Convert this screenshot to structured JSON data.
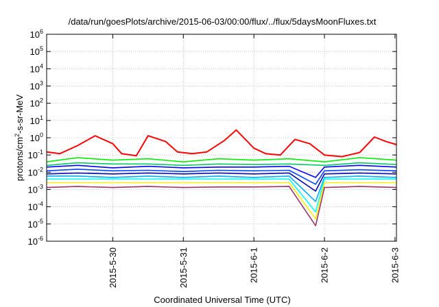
{
  "chart_data": {
    "type": "line",
    "title": "/data/run/goesPlots/archive/2015-06-03/00:00/flux/../flux/5daysMoonFluxes.txt",
    "xlabel": "Coordinated Universal Time (UTC)",
    "ylabel_parts": [
      "protons/cm",
      "2",
      "-s-sr-MeV"
    ],
    "y_scale": "log",
    "ylim": [
      1e-06,
      1000000.0
    ],
    "xlim": [
      "2015-05-29 01:30",
      "2015-06-03 00:30"
    ],
    "y_ticks": [
      {
        "base": "10",
        "exp": "6",
        "value": 1000000.0
      },
      {
        "base": "10",
        "exp": "5",
        "value": 100000.0
      },
      {
        "base": "10",
        "exp": "4",
        "value": 10000.0
      },
      {
        "base": "10",
        "exp": "3",
        "value": 1000.0
      },
      {
        "base": "10",
        "exp": "2",
        "value": 100.0
      },
      {
        "base": "10",
        "exp": "1",
        "value": 10.0
      },
      {
        "base": "10",
        "exp": "0",
        "value": 1
      },
      {
        "base": "10",
        "exp": "-1",
        "value": 0.1
      },
      {
        "base": "10",
        "exp": "-2",
        "value": 0.01
      },
      {
        "base": "10",
        "exp": "-3",
        "value": 0.001
      },
      {
        "base": "10",
        "exp": "-4",
        "value": 0.0001
      },
      {
        "base": "10",
        "exp": "-5",
        "value": 1e-05
      },
      {
        "base": "10",
        "exp": "-6",
        "value": 1e-06
      }
    ],
    "x_ticks": [
      {
        "label": "2015-5-30",
        "value": "2015-05-30 00:00"
      },
      {
        "label": "2015-5-31",
        "value": "2015-05-31 00:00"
      },
      {
        "label": "2015-6-1",
        "value": "2015-06-01 00:00"
      },
      {
        "label": "2015-6-2",
        "value": "2015-06-02 00:00"
      },
      {
        "label": "2015-6-3",
        "value": "2015-06-03 00:00"
      }
    ],
    "grid": true,
    "series": [
      {
        "color": "#ff0000",
        "x": [
          "2015-05-29 01:30",
          "2015-05-29 06:00",
          "2015-05-29 12:00",
          "2015-05-29 18:00",
          "2015-05-30 00:00",
          "2015-05-30 03:00",
          "2015-05-30 08:00",
          "2015-05-30 12:00",
          "2015-05-30 18:00",
          "2015-05-30 22:00",
          "2015-05-31 03:00",
          "2015-05-31 08:00",
          "2015-05-31 14:00",
          "2015-05-31 18:00",
          "2015-06-01 00:00",
          "2015-06-01 04:00",
          "2015-06-01 09:00",
          "2015-06-01 14:00",
          "2015-06-01 19:00",
          "2015-06-02 00:00",
          "2015-06-02 06:00",
          "2015-06-02 12:00",
          "2015-06-02 17:00",
          "2015-06-02 21:00",
          "2015-06-03 00:30"
        ],
        "values": [
          0.15,
          0.12,
          0.35,
          1.3,
          0.45,
          0.12,
          0.09,
          1.3,
          0.6,
          0.15,
          0.12,
          0.15,
          0.7,
          2.8,
          0.25,
          0.12,
          0.1,
          0.8,
          0.45,
          0.1,
          0.08,
          0.14,
          1.1,
          0.6,
          0.4
        ]
      },
      {
        "color": "#00ee00",
        "x": [
          "2015-05-29 01:30",
          "2015-05-29 12:00",
          "2015-05-30 00:00",
          "2015-05-30 12:00",
          "2015-05-31 00:00",
          "2015-05-31 12:00",
          "2015-06-01 00:00",
          "2015-06-01 12:00",
          "2015-06-02 00:00",
          "2015-06-02 12:00",
          "2015-06-03 00:30"
        ],
        "values": [
          0.04,
          0.07,
          0.05,
          0.06,
          0.04,
          0.06,
          0.05,
          0.06,
          0.04,
          0.07,
          0.05
        ]
      },
      {
        "color": "#00cc66",
        "x": [
          "2015-05-29 01:30",
          "2015-05-29 12:00",
          "2015-05-30 00:00",
          "2015-05-30 12:00",
          "2015-05-31 00:00",
          "2015-05-31 12:00",
          "2015-06-01 00:00",
          "2015-06-01 12:00",
          "2015-06-02 00:00",
          "2015-06-02 12:00",
          "2015-06-03 00:30"
        ],
        "values": [
          0.025,
          0.035,
          0.03,
          0.03,
          0.025,
          0.03,
          0.028,
          0.03,
          0.025,
          0.035,
          0.028
        ]
      },
      {
        "color": "#0000ff",
        "x": [
          "2015-05-29 01:30",
          "2015-05-29 12:00",
          "2015-05-30 00:00",
          "2015-05-30 12:00",
          "2015-05-31 00:00",
          "2015-05-31 12:00",
          "2015-06-01 00:00",
          "2015-06-01 12:00",
          "2015-06-01 21:00",
          "2015-06-02 00:00",
          "2015-06-02 12:00",
          "2015-06-03 00:30"
        ],
        "values": [
          0.02,
          0.025,
          0.018,
          0.022,
          0.018,
          0.02,
          0.02,
          0.022,
          0.005,
          0.02,
          0.025,
          0.02
        ]
      },
      {
        "color": "#0044ff",
        "x": [
          "2015-05-29 01:30",
          "2015-05-29 12:00",
          "2015-05-30 00:00",
          "2015-05-30 12:00",
          "2015-05-31 00:00",
          "2015-05-31 12:00",
          "2015-06-01 00:00",
          "2015-06-01 12:00",
          "2015-06-01 21:00",
          "2015-06-02 00:00",
          "2015-06-02 12:00",
          "2015-06-03 00:30"
        ],
        "values": [
          0.012,
          0.015,
          0.012,
          0.013,
          0.011,
          0.013,
          0.012,
          0.013,
          0.002,
          0.012,
          0.014,
          0.012
        ]
      },
      {
        "color": "#0000aa",
        "x": [
          "2015-05-29 01:30",
          "2015-05-29 12:00",
          "2015-05-30 00:00",
          "2015-05-30 12:00",
          "2015-05-31 00:00",
          "2015-05-31 12:00",
          "2015-06-01 00:00",
          "2015-06-01 12:00",
          "2015-06-01 21:00",
          "2015-06-02 00:00",
          "2015-06-02 12:00",
          "2015-06-03 00:30"
        ],
        "values": [
          0.008,
          0.009,
          0.008,
          0.009,
          0.008,
          0.009,
          0.008,
          0.009,
          0.0008,
          0.008,
          0.009,
          0.008
        ]
      },
      {
        "color": "#00aaff",
        "x": [
          "2015-05-29 01:30",
          "2015-05-29 12:00",
          "2015-05-30 00:00",
          "2015-05-30 12:00",
          "2015-05-31 00:00",
          "2015-05-31 12:00",
          "2015-06-01 00:00",
          "2015-06-01 12:00",
          "2015-06-01 21:00",
          "2015-06-02 00:00",
          "2015-06-02 12:00",
          "2015-06-03 00:30"
        ],
        "values": [
          0.006,
          0.006,
          0.005,
          0.006,
          0.005,
          0.006,
          0.005,
          0.006,
          0.0002,
          0.005,
          0.006,
          0.005
        ]
      },
      {
        "color": "#00ffff",
        "x": [
          "2015-05-29 01:30",
          "2015-05-29 12:00",
          "2015-05-30 00:00",
          "2015-05-30 12:00",
          "2015-05-31 00:00",
          "2015-05-31 12:00",
          "2015-06-01 00:00",
          "2015-06-01 12:00",
          "2015-06-01 21:00",
          "2015-06-02 00:00",
          "2015-06-02 12:00",
          "2015-06-03 00:30"
        ],
        "values": [
          0.004,
          0.004,
          0.004,
          0.004,
          0.004,
          0.004,
          0.004,
          0.004,
          5e-05,
          0.004,
          0.004,
          0.004
        ]
      },
      {
        "color": "#ffee00",
        "x": [
          "2015-05-29 01:30",
          "2015-05-29 12:00",
          "2015-05-30 00:00",
          "2015-05-30 12:00",
          "2015-05-31 00:00",
          "2015-05-31 12:00",
          "2015-06-01 00:00",
          "2015-06-01 12:00",
          "2015-06-01 21:00",
          "2015-06-02 00:00",
          "2015-06-02 12:00",
          "2015-06-03 00:30"
        ],
        "values": [
          0.0025,
          0.0025,
          0.0025,
          0.0025,
          0.0025,
          0.0025,
          0.0025,
          0.0025,
          2e-05,
          0.0025,
          0.0025,
          0.0025
        ]
      },
      {
        "color": "#993366",
        "x": [
          "2015-05-29 01:30",
          "2015-05-29 12:00",
          "2015-05-30 00:00",
          "2015-05-30 12:00",
          "2015-05-31 00:00",
          "2015-05-31 12:00",
          "2015-06-01 00:00",
          "2015-06-01 12:00",
          "2015-06-01 21:00",
          "2015-06-02 00:00",
          "2015-06-02 12:00",
          "2015-06-03 00:30"
        ],
        "values": [
          0.0013,
          0.0015,
          0.0013,
          0.0015,
          0.0013,
          0.0014,
          0.0014,
          0.0015,
          8e-06,
          0.0013,
          0.0015,
          0.0013
        ]
      }
    ]
  }
}
